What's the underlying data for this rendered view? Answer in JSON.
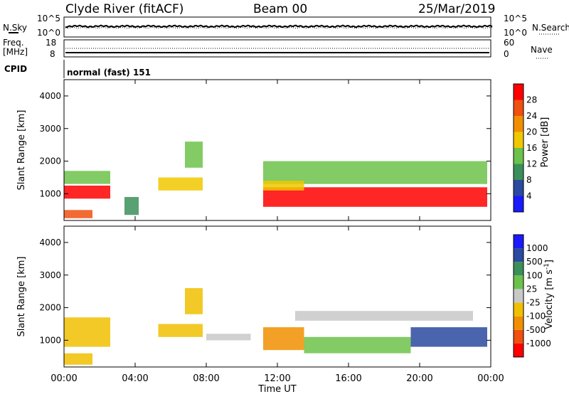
{
  "header": {
    "station": "Clyde River (fitACF)",
    "beam": "Beam 00",
    "date": "25/Mar/2019"
  },
  "noise_panel": {
    "left_label": "N.Sky",
    "right_label": "N.Search",
    "left_ticks": [
      "10^5",
      "10^0"
    ],
    "right_ticks": [
      "10^5",
      "10^0"
    ]
  },
  "freq_panel": {
    "left_label_1": "Freq.",
    "left_label_2": "[MHz]",
    "right_label": "Nave",
    "left_ticks": [
      "18",
      "8"
    ],
    "right_ticks": [
      "60",
      "0"
    ]
  },
  "cpid": {
    "label": "CPID",
    "mode": "normal (fast) 151"
  },
  "colors": {
    "power_scale": [
      "#1a1aff",
      "#2a4aa0",
      "#3c8f5a",
      "#6cc24a",
      "#f0c800",
      "#f09000",
      "#f05010",
      "#ff0000"
    ],
    "velocity_scale": [
      "#ff0000",
      "#f05010",
      "#f09000",
      "#f0c000",
      "#c8c8c8",
      "#6cc24a",
      "#3c8f5a",
      "#2a4aa0",
      "#1a1aff"
    ]
  },
  "chart_data": [
    {
      "type": "heatmap",
      "panel": "power",
      "ylabel": "Slant Range [km]",
      "yticks": [
        1000,
        2000,
        3000,
        4000
      ],
      "ylim": [
        180,
        4500
      ],
      "xlim": [
        0,
        24
      ],
      "colorbar": {
        "label": "Power [dB]",
        "ticks": [
          "4",
          "8",
          "12",
          "16",
          "20",
          "24",
          "28"
        ],
        "range": [
          0,
          32
        ]
      },
      "regions": [
        {
          "t0": 0.0,
          "t1": 2.6,
          "r0": 850,
          "r1": 1250,
          "value": 28
        },
        {
          "t0": 0.0,
          "t1": 2.6,
          "r0": 1300,
          "r1": 1700,
          "value": 14
        },
        {
          "t0": 0.0,
          "t1": 1.6,
          "r0": 250,
          "r1": 500,
          "value": 26
        },
        {
          "t0": 3.4,
          "t1": 4.2,
          "r0": 350,
          "r1": 900,
          "value": 10
        },
        {
          "t0": 5.3,
          "t1": 7.8,
          "r0": 1100,
          "r1": 1500,
          "value": 18
        },
        {
          "t0": 6.8,
          "t1": 7.8,
          "r0": 1800,
          "r1": 2600,
          "value": 13
        },
        {
          "t0": 11.2,
          "t1": 23.8,
          "r0": 600,
          "r1": 1200,
          "value": 28
        },
        {
          "t0": 11.2,
          "t1": 23.8,
          "r0": 1300,
          "r1": 2000,
          "value": 12
        },
        {
          "t0": 11.2,
          "t1": 13.5,
          "r0": 1100,
          "r1": 1400,
          "value": 16
        }
      ]
    },
    {
      "type": "heatmap",
      "panel": "velocity",
      "ylabel": "Slant Range [km]",
      "xlabel": "Time UT",
      "xticks": [
        "00:00",
        "04:00",
        "08:00",
        "12:00",
        "16:00",
        "20:00",
        "00:00"
      ],
      "yticks": [
        1000,
        2000,
        3000,
        4000
      ],
      "ylim": [
        180,
        4500
      ],
      "xlim": [
        0,
        24
      ],
      "colorbar": {
        "label": "Velocity [m s",
        "label_superscript": "-1",
        "label_close": "]",
        "ticks": [
          "-1000",
          "-500",
          "-100",
          "-25",
          "25",
          "100",
          "500",
          "1000"
        ],
        "range": [
          -1200,
          1200
        ]
      },
      "regions": [
        {
          "t0": 0.0,
          "t1": 2.6,
          "r0": 800,
          "r1": 1700,
          "value": -400
        },
        {
          "t0": 0.0,
          "t1": 1.6,
          "r0": 250,
          "r1": 600,
          "value": -300
        },
        {
          "t0": 5.3,
          "t1": 7.8,
          "r0": 1100,
          "r1": 1500,
          "value": -400
        },
        {
          "t0": 6.8,
          "t1": 7.8,
          "r0": 1800,
          "r1": 2600,
          "value": -200
        },
        {
          "t0": 8.0,
          "t1": 10.5,
          "r0": 1000,
          "r1": 1200,
          "value": 20
        },
        {
          "t0": 11.2,
          "t1": 13.5,
          "r0": 700,
          "r1": 1400,
          "value": -500
        },
        {
          "t0": 13.5,
          "t1": 19.5,
          "r0": 600,
          "r1": 1100,
          "value": 150
        },
        {
          "t0": 19.5,
          "t1": 23.8,
          "r0": 800,
          "r1": 1400,
          "value": 700
        },
        {
          "t0": 13.0,
          "t1": 23.0,
          "r0": 1600,
          "r1": 1900,
          "value": 20
        }
      ]
    }
  ]
}
